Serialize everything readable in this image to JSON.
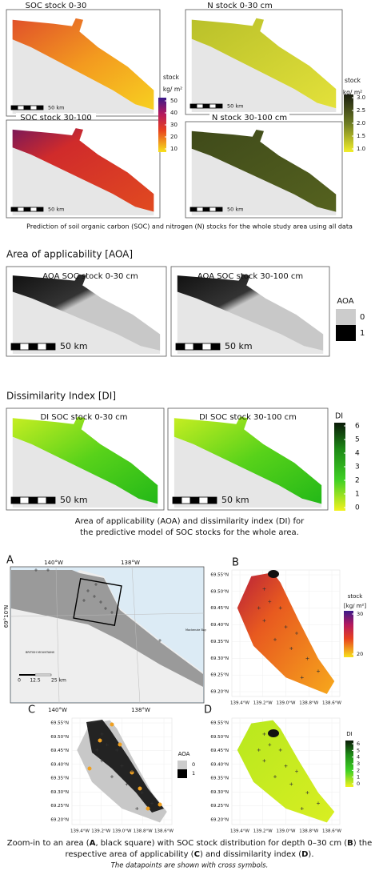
{
  "prediction": {
    "maps": [
      {
        "title": "SOC stock 0-30",
        "scale": "50 km"
      },
      {
        "title": "N stock 0-30 cm",
        "scale": "50 km"
      },
      {
        "title": "SOC stock 30-100",
        "scale": "50 km"
      },
      {
        "title": "N stock 30-100 cm",
        "scale": "50 km"
      }
    ],
    "soc_legend": {
      "title": "stock",
      "unit": "kg/ m²",
      "ticks": [
        "50",
        "40",
        "30",
        "20",
        "10"
      ]
    },
    "n_legend": {
      "title": "stock",
      "unit": "kg/ m²",
      "ticks": [
        "3.0",
        "2.5",
        "2.0",
        "1.5",
        "1.0"
      ]
    },
    "caption": "Prediction of soil organic carbon (SOC) and nitrogen (N) stocks for the whole study area using all data"
  },
  "aoa": {
    "heading": "Area of applicability [AOA]",
    "maps": [
      {
        "title": "AOA SOC stock 0-30 cm",
        "scale": "50 km"
      },
      {
        "title": "AOA SOC stock 30-100 cm",
        "scale": "50 km"
      }
    ],
    "legend": {
      "title": "AOA",
      "labels": [
        "0",
        "1"
      ]
    }
  },
  "di": {
    "heading": "Dissimilarity Index [DI]",
    "maps": [
      {
        "title": "DI SOC stock  0-30 cm",
        "scale": "50 km"
      },
      {
        "title": "DI SOC stock  30-100 cm",
        "scale": "50 km"
      }
    ],
    "legend": {
      "title": "DI",
      "ticks": [
        "6",
        "5",
        "4",
        "3",
        "2",
        "1",
        "0"
      ]
    },
    "caption": [
      "Area of applicability (AOA) and dissimilarity index (DI) for",
      "the predictive model of SOC stocks for the whole area."
    ]
  },
  "zoom": {
    "A": {
      "label": "A",
      "top_ticks": [
        "140°W",
        "138°W"
      ],
      "bottom_ticks": [
        "140°W",
        "138°W"
      ],
      "lat": "69°10'N",
      "scale": [
        "0",
        "12.5",
        "25 km"
      ],
      "places": [
        "BRITISH MOUNTAINS",
        "Mackenzie Bay"
      ]
    },
    "B": {
      "label": "B",
      "legend": {
        "title": "stock",
        "unit": "[kg/ m²]",
        "ticks": [
          "30",
          "20"
        ]
      }
    },
    "C": {
      "label": "C",
      "legend": {
        "title": "AOA",
        "labels": [
          "0",
          "1"
        ]
      }
    },
    "D": {
      "label": "D",
      "legend": {
        "title": "DI",
        "ticks": [
          "6",
          "5",
          "4",
          "3",
          "2",
          "1",
          "0"
        ]
      }
    },
    "lat_ticks": [
      "69.55°N",
      "69.50°N",
      "69.45°N",
      "69.40°N",
      "69.35°N",
      "69.30°N",
      "69.25°N",
      "69.20°N"
    ],
    "lon_ticks": [
      "139.4°W",
      "139.2°W",
      "139.0°W",
      "138.8°W",
      "138.6°W"
    ],
    "caption": {
      "lines": [
        [
          "Zoom-in to an area (",
          "A",
          ", black square) with SOC stock distribution for depth 0–30 cm (",
          "B",
          ") the"
        ],
        [
          "respective area of applicability (",
          "C",
          ") and dissimilarity index (",
          "D",
          ")."
        ]
      ],
      "note": "The datapoints are shown with cross symbols."
    }
  }
}
